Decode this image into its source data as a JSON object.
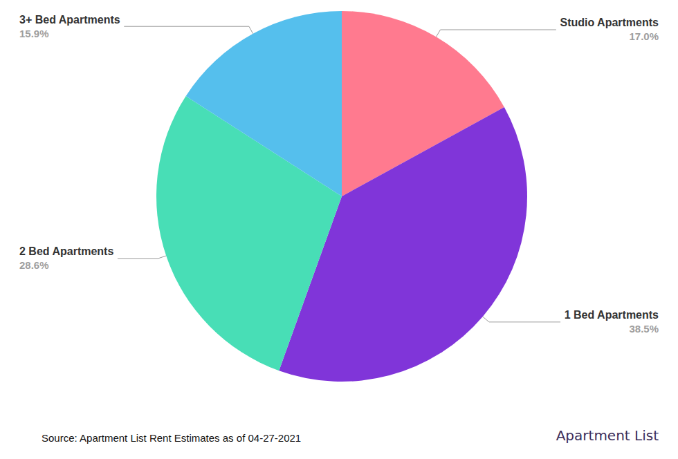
{
  "chart_data": {
    "type": "pie",
    "categories": [
      "Studio Apartments",
      "1 Bed Apartments",
      "2 Bed Apartments",
      "3+ Bed Apartments"
    ],
    "values": [
      17.0,
      38.5,
      28.6,
      15.9
    ],
    "value_labels": [
      "17.0%",
      "38.5%",
      "28.6%",
      "15.9%"
    ],
    "colors": [
      "#ff7a8f",
      "#8035d9",
      "#48deb6",
      "#55bfed"
    ],
    "data_labels": true,
    "annotations": [
      "Source: Apartment List Rent Estimates as of 04-27-2021",
      "Apartment List"
    ]
  }
}
